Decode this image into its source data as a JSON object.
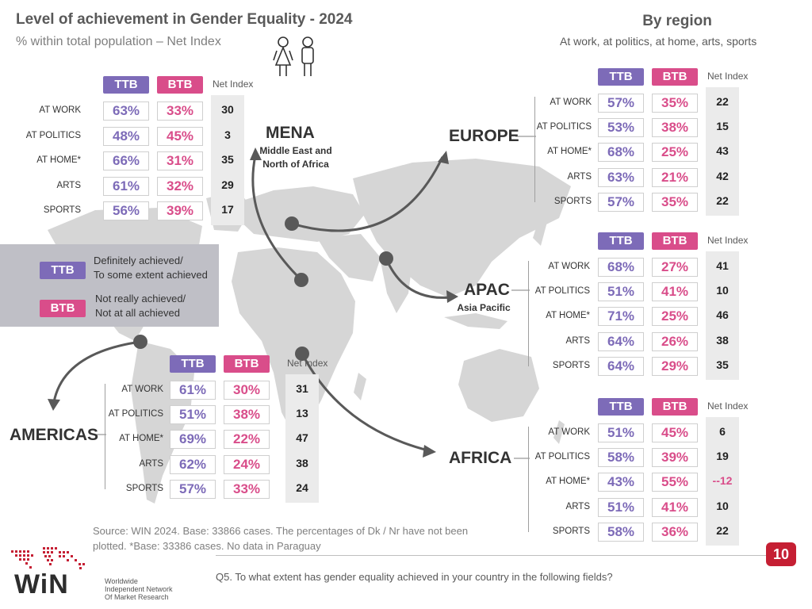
{
  "header": {
    "title": "Level of achievement in Gender Equality - 2024",
    "subtitle": "% within total population – Net Index",
    "region_title": "By region",
    "region_subtitle": "At work, at politics, at home, arts, sports"
  },
  "labels": {
    "ttb": "TTB",
    "btb": "BTB",
    "net_index": "Net Index"
  },
  "legend": {
    "ttb_label": "TTB",
    "ttb_text_1": "Definitely achieved/",
    "ttb_text_2": "To some extent achieved",
    "btb_label": "BTB",
    "btb_text_1": "Not really achieved/",
    "btb_text_2": "Not at all achieved"
  },
  "colors": {
    "ttb": "#7d6bb8",
    "btb": "#d94d8a",
    "map": "#d6d6d6",
    "arrow": "#595959"
  },
  "chart_data": [
    {
      "type": "table",
      "region": "MENA",
      "name": "MENA",
      "description_1": "Middle East and",
      "description_2": "North of Africa",
      "rows": [
        {
          "label": "AT WORK",
          "ttb": "63%",
          "btb": "33%",
          "net": "30"
        },
        {
          "label": "AT POLITICS",
          "ttb": "48%",
          "btb": "45%",
          "net": "3"
        },
        {
          "label": "AT HOME*",
          "ttb": "66%",
          "btb": "31%",
          "net": "35"
        },
        {
          "label": "ARTS",
          "ttb": "61%",
          "btb": "32%",
          "net": "29"
        },
        {
          "label": "SPORTS",
          "ttb": "56%",
          "btb": "39%",
          "net": "17"
        }
      ]
    },
    {
      "type": "table",
      "region": "EUROPE",
      "name": "EUROPE",
      "rows": [
        {
          "label": "AT WORK",
          "ttb": "57%",
          "btb": "35%",
          "net": "22"
        },
        {
          "label": "AT POLITICS",
          "ttb": "53%",
          "btb": "38%",
          "net": "15"
        },
        {
          "label": "AT HOME*",
          "ttb": "68%",
          "btb": "25%",
          "net": "43"
        },
        {
          "label": "ARTS",
          "ttb": "63%",
          "btb": "21%",
          "net": "42"
        },
        {
          "label": "SPORTS",
          "ttb": "57%",
          "btb": "35%",
          "net": "22"
        }
      ]
    },
    {
      "type": "table",
      "region": "APAC",
      "name": "APAC",
      "description_1": "Asia Pacific",
      "rows": [
        {
          "label": "AT WORK",
          "ttb": "68%",
          "btb": "27%",
          "net": "41"
        },
        {
          "label": "AT POLITICS",
          "ttb": "51%",
          "btb": "41%",
          "net": "10"
        },
        {
          "label": "AT HOME*",
          "ttb": "71%",
          "btb": "25%",
          "net": "46"
        },
        {
          "label": "ARTS",
          "ttb": "64%",
          "btb": "26%",
          "net": "38"
        },
        {
          "label": "SPORTS",
          "ttb": "64%",
          "btb": "29%",
          "net": "35"
        }
      ]
    },
    {
      "type": "table",
      "region": "AMERICAS",
      "name": "AMERICAS",
      "rows": [
        {
          "label": "AT WORK",
          "ttb": "61%",
          "btb": "30%",
          "net": "31"
        },
        {
          "label": "AT POLITICS",
          "ttb": "51%",
          "btb": "38%",
          "net": "13"
        },
        {
          "label": "AT HOME*",
          "ttb": "69%",
          "btb": "22%",
          "net": "47"
        },
        {
          "label": "ARTS",
          "ttb": "62%",
          "btb": "24%",
          "net": "38"
        },
        {
          "label": "SPORTS",
          "ttb": "57%",
          "btb": "33%",
          "net": "24"
        }
      ]
    },
    {
      "type": "table",
      "region": "AFRICA",
      "name": "AFRICA",
      "rows": [
        {
          "label": "AT WORK",
          "ttb": "51%",
          "btb": "45%",
          "net": "6"
        },
        {
          "label": "AT POLITICS",
          "ttb": "58%",
          "btb": "39%",
          "net": "19"
        },
        {
          "label": "AT HOME*",
          "ttb": "43%",
          "btb": "55%",
          "net": "--12"
        },
        {
          "label": "ARTS",
          "ttb": "51%",
          "btb": "41%",
          "net": "10"
        },
        {
          "label": "SPORTS",
          "ttb": "58%",
          "btb": "36%",
          "net": "22"
        }
      ]
    }
  ],
  "footer": {
    "source_1": "Source: WIN 2024. Base: 33866 cases. The percentages of Dk / Nr have not been",
    "source_2": "plotted. *Base: 33386 cases. No data in Paraguay",
    "question": "Q5. To what extent has gender equality achieved in your country in the following fields?",
    "page": "10",
    "logo_word": "WiN",
    "logo_line_1": "Worldwide",
    "logo_line_2": "Independent Network",
    "logo_line_3": "Of Market Research"
  }
}
